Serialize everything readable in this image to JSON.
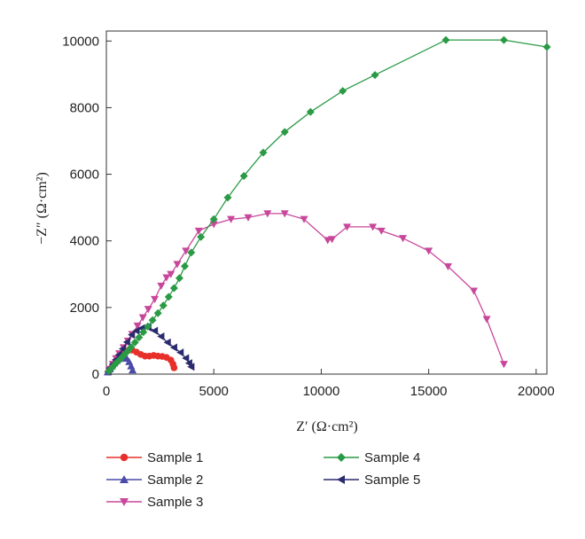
{
  "chart_data": {
    "type": "scatter",
    "title": "",
    "xlabel": "Z′ (Ω·cm²)",
    "ylabel": "−Z″ (Ω·cm²)",
    "xlim": [
      0,
      20500
    ],
    "ylim": [
      0,
      10300
    ],
    "xticks": [
      0,
      5000,
      10000,
      15000,
      20000
    ],
    "yticks": [
      0,
      2000,
      4000,
      6000,
      8000,
      10000
    ],
    "grid": false,
    "legend_position": "bottom",
    "series": [
      {
        "name": "Sample 1",
        "color": "#e8302a",
        "marker": "circle",
        "points": [
          [
            100,
            60
          ],
          [
            200,
            170
          ],
          [
            300,
            260
          ],
          [
            420,
            340
          ],
          [
            560,
            420
          ],
          [
            700,
            520
          ],
          [
            860,
            640
          ],
          [
            1020,
            710
          ],
          [
            1200,
            720
          ],
          [
            1400,
            660
          ],
          [
            1600,
            590
          ],
          [
            1800,
            540
          ],
          [
            2000,
            540
          ],
          [
            2200,
            560
          ],
          [
            2400,
            540
          ],
          [
            2600,
            530
          ],
          [
            2800,
            500
          ],
          [
            3000,
            420
          ],
          [
            3100,
            300
          ],
          [
            3150,
            190
          ]
        ]
      },
      {
        "name": "Sample 2",
        "color": "#4a4aa8",
        "marker": "triangle-up",
        "points": [
          [
            60,
            60
          ],
          [
            150,
            150
          ],
          [
            250,
            240
          ],
          [
            360,
            330
          ],
          [
            480,
            400
          ],
          [
            600,
            460
          ],
          [
            720,
            500
          ],
          [
            840,
            510
          ],
          [
            950,
            470
          ],
          [
            1060,
            370
          ],
          [
            1150,
            240
          ],
          [
            1220,
            120
          ]
        ]
      },
      {
        "name": "Sample 3",
        "color": "#c8479b",
        "marker": "triangle-down",
        "points": [
          [
            150,
            150
          ],
          [
            300,
            300
          ],
          [
            450,
            470
          ],
          [
            600,
            620
          ],
          [
            800,
            800
          ],
          [
            1000,
            1000
          ],
          [
            1200,
            1200
          ],
          [
            1450,
            1450
          ],
          [
            1700,
            1700
          ],
          [
            1950,
            1950
          ],
          [
            2250,
            2250
          ],
          [
            2550,
            2650
          ],
          [
            2800,
            2900
          ],
          [
            3000,
            3000
          ],
          [
            3300,
            3300
          ],
          [
            3700,
            3700
          ],
          [
            4300,
            4300
          ],
          [
            5000,
            4500
          ],
          [
            5800,
            4650
          ],
          [
            6600,
            4700
          ],
          [
            7500,
            4820
          ],
          [
            8300,
            4820
          ],
          [
            9200,
            4650
          ],
          [
            10300,
            4020
          ],
          [
            10500,
            4050
          ],
          [
            11200,
            4420
          ],
          [
            12400,
            4420
          ],
          [
            12800,
            4300
          ],
          [
            13800,
            4080
          ],
          [
            15000,
            3700
          ],
          [
            15900,
            3230
          ],
          [
            17100,
            2500
          ],
          [
            17700,
            1650
          ],
          [
            18500,
            300
          ]
        ]
      },
      {
        "name": "Sample 4",
        "color": "#2a9a45",
        "marker": "diamond",
        "points": [
          [
            120,
            90
          ],
          [
            250,
            180
          ],
          [
            380,
            280
          ],
          [
            520,
            370
          ],
          [
            660,
            460
          ],
          [
            820,
            570
          ],
          [
            980,
            680
          ],
          [
            1150,
            810
          ],
          [
            1330,
            950
          ],
          [
            1520,
            1100
          ],
          [
            1720,
            1260
          ],
          [
            1930,
            1430
          ],
          [
            2150,
            1620
          ],
          [
            2400,
            1830
          ],
          [
            2650,
            2060
          ],
          [
            2900,
            2320
          ],
          [
            3150,
            2580
          ],
          [
            3400,
            2880
          ],
          [
            3650,
            3240
          ],
          [
            3950,
            3650
          ],
          [
            4400,
            4120
          ],
          [
            5000,
            4650
          ],
          [
            5650,
            5300
          ],
          [
            6400,
            5950
          ],
          [
            7300,
            6650
          ],
          [
            8300,
            7270
          ],
          [
            9500,
            7870
          ],
          [
            11000,
            8500
          ],
          [
            12500,
            8980
          ],
          [
            15800,
            10030
          ],
          [
            18500,
            10030
          ],
          [
            20500,
            9820
          ]
        ]
      },
      {
        "name": "Sample 5",
        "color": "#2a2a6e",
        "marker": "triangle-left",
        "points": [
          [
            80,
            80
          ],
          [
            180,
            180
          ],
          [
            300,
            300
          ],
          [
            430,
            430
          ],
          [
            580,
            580
          ],
          [
            760,
            760
          ],
          [
            960,
            960
          ],
          [
            1180,
            1180
          ],
          [
            1400,
            1300
          ],
          [
            1650,
            1380
          ],
          [
            1950,
            1400
          ],
          [
            2250,
            1300
          ],
          [
            2550,
            1130
          ],
          [
            2850,
            950
          ],
          [
            3150,
            800
          ],
          [
            3450,
            650
          ],
          [
            3700,
            480
          ],
          [
            3850,
            330
          ],
          [
            3950,
            220
          ]
        ]
      }
    ]
  }
}
